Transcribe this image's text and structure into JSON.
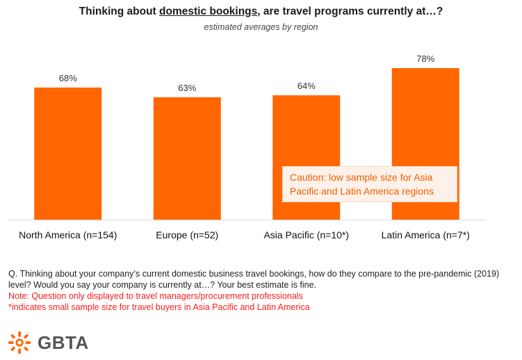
{
  "title": {
    "prefix": "Thinking about ",
    "underlined": "domestic bookings",
    "suffix": ", are travel programs currently at…?"
  },
  "subtitle": "estimated averages by region",
  "colors": {
    "bar": "#ff6600",
    "caution_text": "#f06000",
    "note": "#ff1a1a"
  },
  "chart_data": {
    "type": "bar",
    "categories": [
      "North America (n=154)",
      "Europe (n=52)",
      "Asia Pacific (n=10*)",
      "Latin America (n=7*)"
    ],
    "values": [
      68,
      63,
      64,
      78
    ],
    "value_labels": [
      "68%",
      "63%",
      "64%",
      "78%"
    ],
    "unit": "%",
    "ylim": [
      0,
      90
    ],
    "grid": false,
    "legend": "none"
  },
  "caution": "Caution: low sample size for Asia Pacific and Latin America regions",
  "question": "Q. Thinking about your company’s current domestic business travel bookings, how do they compare to the pre-pandemic (2019) level? Would you say your company is currently at…? Your best estimate is fine.",
  "notes": [
    "Note: Question only displayed to travel managers/procurement professionals",
    "*indicates small sample size for travel buyers in Asia Pacific and Latin America"
  ],
  "logo": {
    "text": "GBTA",
    "icon": "gbta-sunburst-icon"
  }
}
